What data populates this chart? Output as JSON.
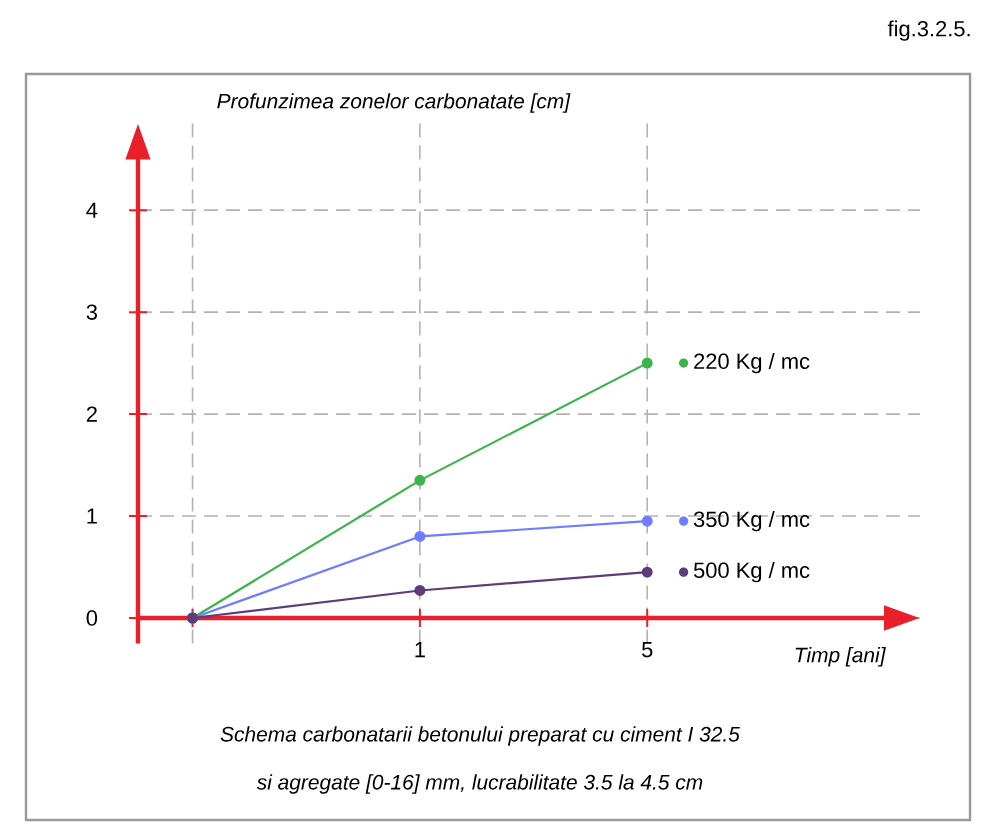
{
  "chart_data": {
    "type": "line",
    "ylabel": "Profunzimea zonelor carbonatate [cm]",
    "xlabel": "Timp [ani]",
    "annotations": [
      "fig.3.2.5.",
      "Schema carbonatarii betonului preparat cu ciment I 32.5",
      "si agregate [0-16] mm, lucrabilitate 3.5 la 4.5 cm"
    ],
    "categories": [
      null,
      "1",
      "5"
    ],
    "series": [
      {
        "name": "220 Kg / mc",
        "color": "#3cb44b",
        "values": [
          0,
          1.35,
          2.5
        ]
      },
      {
        "name": "350 Kg / mc",
        "color": "#6f7cff",
        "values": [
          0,
          0.8,
          0.95
        ]
      },
      {
        "name": "500 Kg / mc",
        "color": "#5c3d7a",
        "values": [
          0,
          0.27,
          0.45
        ]
      }
    ],
    "ylim": [
      -0.25,
      4.85
    ],
    "yticks": [
      0,
      1,
      2,
      3,
      4
    ],
    "grid": true,
    "legend": "right",
    "marker": "circle"
  }
}
